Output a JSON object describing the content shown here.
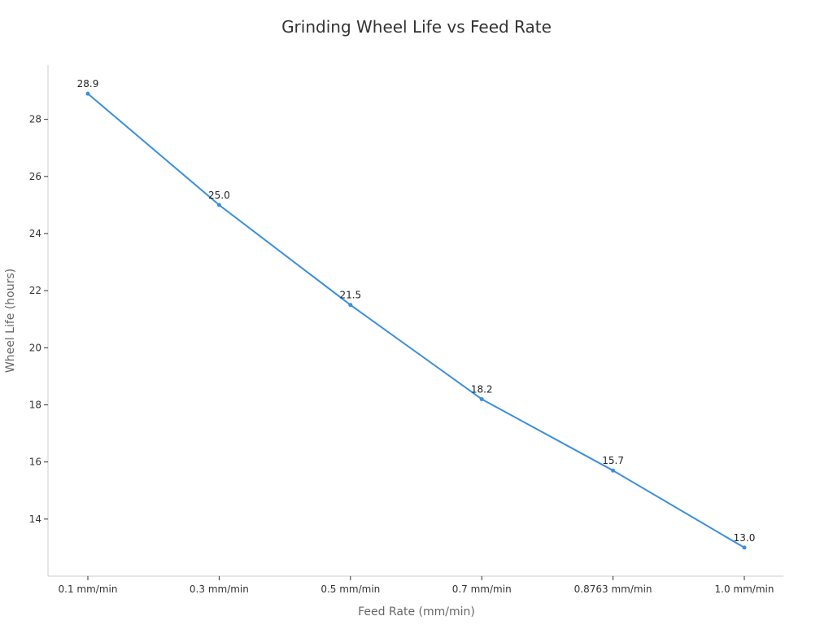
{
  "chart_data": {
    "type": "line",
    "title": "Grinding Wheel Life vs Feed Rate",
    "xlabel": "Feed Rate (mm/min)",
    "ylabel": "Wheel Life (hours)",
    "categories": [
      "0.1 mm/min",
      "0.3 mm/min",
      "0.5 mm/min",
      "0.7 mm/min",
      "0.8763 mm/min",
      "1.0 mm/min"
    ],
    "series": [
      {
        "values": [
          28.9,
          25.0,
          21.5,
          18.2,
          15.7,
          13.0
        ],
        "data_labels": [
          "28.9",
          "25.0",
          "21.5",
          "18.2",
          "15.7",
          "13.0"
        ]
      }
    ],
    "ylim": [
      12.0,
      29.9
    ],
    "yticks": [
      14,
      16,
      18,
      20,
      22,
      24,
      26,
      28
    ],
    "ytick_labels": [
      "14",
      "16",
      "18",
      "20",
      "22",
      "24",
      "26",
      "28"
    ],
    "grid": false,
    "legend": "none",
    "line_color": "#3a8fdf"
  }
}
